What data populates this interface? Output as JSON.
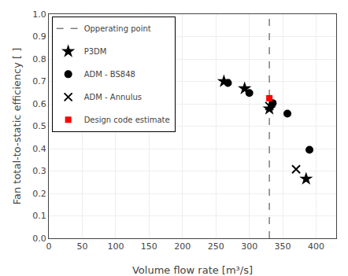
{
  "chart_data": {
    "type": "scatter",
    "title": "",
    "xlabel": "Volume flow rate [m³/s]",
    "ylabel": "Fan total-to-static efficiency [ ]",
    "xlim": [
      0,
      430
    ],
    "ylim": [
      0.0,
      1.0
    ],
    "xticks": [
      0,
      50,
      100,
      150,
      200,
      250,
      300,
      350,
      400
    ],
    "yticks": [
      {
        "value": 0.0,
        "label": "0.0"
      },
      0.1,
      0.2,
      0.3,
      0.4,
      0.5,
      0.6,
      0.7,
      0.8,
      0.9,
      {
        "value": 1.0,
        "label": "1.0"
      }
    ],
    "grid": true,
    "legend": "upper left",
    "series": [
      {
        "name": "Opperating point",
        "type": "vline",
        "x": [
          330
        ],
        "color": "#7f7f7f",
        "line_style": "dashed"
      },
      {
        "name": "P3DM",
        "type": "scatter",
        "marker": "star",
        "color": "#000000",
        "x": [
          262,
          293,
          330,
          385
        ],
        "values": [
          0.7,
          0.668,
          0.578,
          0.265
        ]
      },
      {
        "name": "ADM - BS848",
        "type": "scatter",
        "marker": "circle",
        "color": "#000000",
        "x": [
          268,
          300,
          335,
          357,
          390
        ],
        "values": [
          0.693,
          0.648,
          0.603,
          0.556,
          0.395
        ]
      },
      {
        "name": "ADM - Annulus",
        "type": "scatter",
        "marker": "x",
        "color": "#000000",
        "x": [
          330,
          370
        ],
        "values": [
          0.59,
          0.308
        ]
      },
      {
        "name": "Design code estimate",
        "type": "scatter",
        "marker": "square",
        "color": "#ff0000",
        "x": [
          330
        ],
        "values": [
          0.625
        ]
      }
    ]
  }
}
